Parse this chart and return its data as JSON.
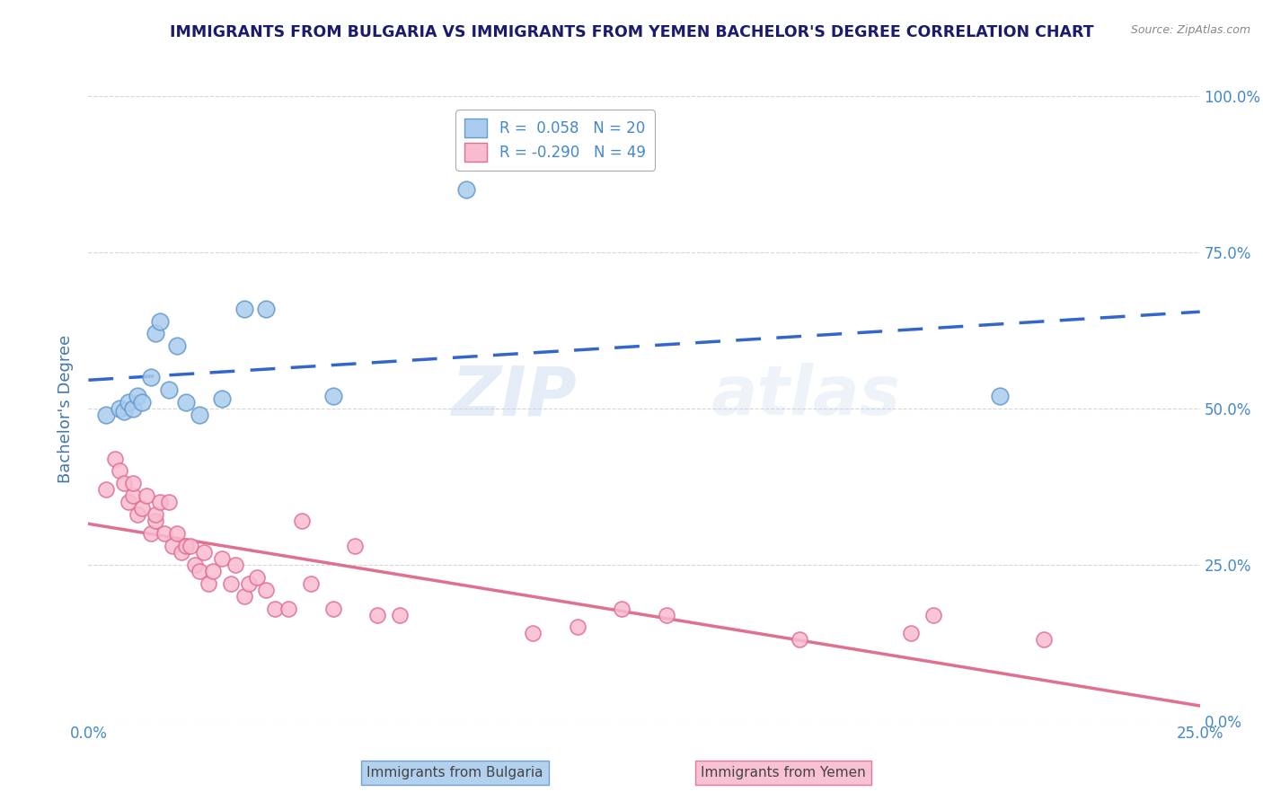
{
  "title": "IMMIGRANTS FROM BULGARIA VS IMMIGRANTS FROM YEMEN BACHELOR'S DEGREE CORRELATION CHART",
  "source": "Source: ZipAtlas.com",
  "ylabel": "Bachelor's Degree",
  "xlim": [
    0.0,
    0.25
  ],
  "ylim": [
    0.0,
    1.0
  ],
  "ytick_vals": [
    0.0,
    0.25,
    0.5,
    0.75,
    1.0
  ],
  "ytick_labels": [
    "0.0%",
    "25.0%",
    "50.0%",
    "75.0%",
    "100.0%"
  ],
  "xtick_vals": [
    0.0,
    0.05,
    0.1,
    0.15,
    0.2,
    0.25
  ],
  "xtick_labels": [
    "0.0%",
    "",
    "",
    "",
    "",
    "25.0%"
  ],
  "bulgaria_color": "#aaccee",
  "bulgaria_edge": "#6699cc",
  "yemen_color": "#f8bbd0",
  "yemen_edge": "#e07090",
  "bulgaria_line_color": "#3366cc",
  "yemen_line_color": "#e07090",
  "legend_r_bulgaria": "R =  0.058   N = 20",
  "legend_r_yemen": "R = -0.290   N = 49",
  "watermark": "ZIPatlas",
  "bulgaria_x": [
    0.004,
    0.007,
    0.008,
    0.009,
    0.01,
    0.011,
    0.012,
    0.014,
    0.015,
    0.016,
    0.018,
    0.02,
    0.022,
    0.025,
    0.03,
    0.035,
    0.04,
    0.055,
    0.085,
    0.205
  ],
  "bulgaria_y": [
    0.49,
    0.5,
    0.495,
    0.51,
    0.5,
    0.52,
    0.51,
    0.55,
    0.62,
    0.64,
    0.53,
    0.6,
    0.51,
    0.49,
    0.515,
    0.66,
    0.66,
    0.52,
    0.85,
    0.52
  ],
  "yemen_x": [
    0.004,
    0.006,
    0.007,
    0.008,
    0.009,
    0.01,
    0.01,
    0.011,
    0.012,
    0.013,
    0.014,
    0.015,
    0.015,
    0.016,
    0.017,
    0.018,
    0.019,
    0.02,
    0.021,
    0.022,
    0.023,
    0.024,
    0.025,
    0.026,
    0.027,
    0.028,
    0.03,
    0.032,
    0.033,
    0.035,
    0.036,
    0.038,
    0.04,
    0.042,
    0.045,
    0.048,
    0.05,
    0.055,
    0.06,
    0.065,
    0.07,
    0.1,
    0.11,
    0.12,
    0.13,
    0.16,
    0.185,
    0.19,
    0.215
  ],
  "yemen_y": [
    0.37,
    0.42,
    0.4,
    0.38,
    0.35,
    0.36,
    0.38,
    0.33,
    0.34,
    0.36,
    0.3,
    0.32,
    0.33,
    0.35,
    0.3,
    0.35,
    0.28,
    0.3,
    0.27,
    0.28,
    0.28,
    0.25,
    0.24,
    0.27,
    0.22,
    0.24,
    0.26,
    0.22,
    0.25,
    0.2,
    0.22,
    0.23,
    0.21,
    0.18,
    0.18,
    0.32,
    0.22,
    0.18,
    0.28,
    0.17,
    0.17,
    0.14,
    0.15,
    0.18,
    0.17,
    0.13,
    0.14,
    0.17,
    0.13
  ],
  "bg_color": "#ffffff",
  "grid_color": "#cccccc",
  "title_color": "#1a1a6e",
  "axis_label_color": "#4477aa",
  "tick_color": "#4488cc"
}
